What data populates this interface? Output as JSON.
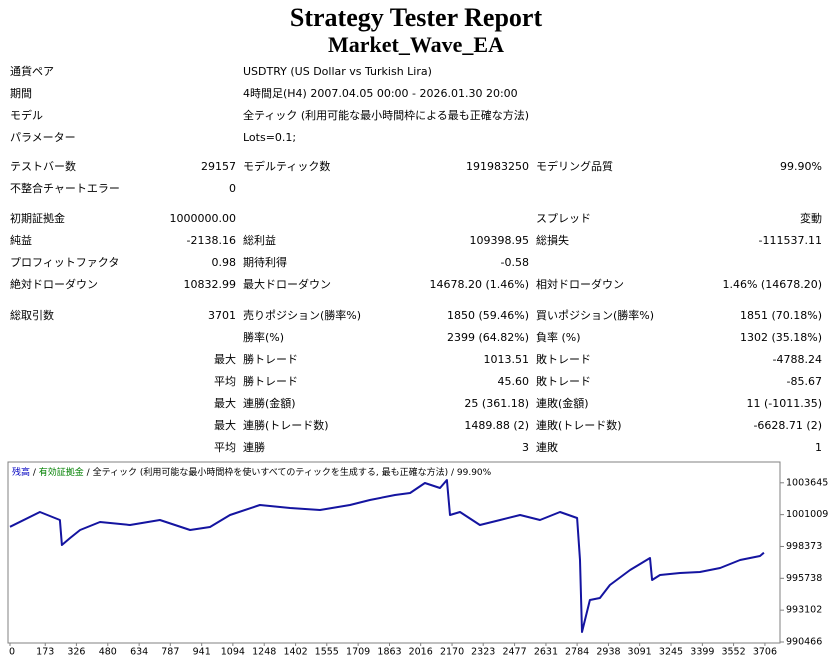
{
  "header": {
    "title": "Strategy Tester Report",
    "subtitle": "Market_Wave_EA"
  },
  "info": [
    [
      "通貨ペア",
      "USDTRY (US Dollar vs Turkish Lira)"
    ],
    [
      "期間",
      "4時間足(H4) 2007.04.05 00:00 - 2026.01.30 20:00"
    ],
    [
      "モデル",
      "全ティック (利用可能な最小時間枠による最も正確な方法)"
    ],
    [
      "パラメーター",
      "Lots=0.1;"
    ]
  ],
  "stats": [
    [
      "テストバー数",
      "29157",
      "モデルティック数",
      "191983250",
      "モデリング品質",
      "99.90%"
    ],
    [
      "不整合チャートエラー",
      "0",
      null,
      null,
      null,
      null
    ],
    [
      "初期証拠金",
      "1000000.00",
      null,
      null,
      "スプレッド",
      "変動"
    ],
    [
      "純益",
      "-2138.16",
      "総利益",
      "109398.95",
      "総損失",
      "-111537.11"
    ],
    [
      "プロフィットファクタ",
      "0.98",
      "期待利得",
      "-0.58",
      null,
      null
    ],
    [
      "絶対ドローダウン",
      "10832.99",
      "最大ドローダウン",
      "14678.20 (1.46%)",
      "相対ドローダウン",
      "1.46% (14678.20)"
    ],
    [
      "総取引数",
      "3701",
      "売りポジション(勝率%)",
      "1850 (59.46%)",
      "買いポジション(勝率%)",
      "1851 (70.18%)"
    ],
    [
      null,
      null,
      "勝率(%)",
      "2399 (64.82%)",
      "負率 (%)",
      "1302 (35.18%)"
    ],
    [
      null,
      "最大",
      "勝トレード",
      "1013.51",
      "敗トレード",
      "-4788.24"
    ],
    [
      null,
      "平均",
      "勝トレード",
      "45.60",
      "敗トレード",
      "-85.67"
    ],
    [
      null,
      "最大",
      "連勝(金額)",
      "25 (361.18)",
      "連敗(金額)",
      "11 (-1011.35)"
    ],
    [
      null,
      "最大",
      "連勝(トレード数)",
      "1489.88 (2)",
      "連敗(トレード数)",
      "-6628.71 (2)"
    ],
    [
      null,
      "平均",
      "連勝",
      "3",
      "連敗",
      "1"
    ]
  ],
  "chart_data": {
    "type": "line",
    "legend": [
      {
        "text": "残高",
        "color": "#0000c0"
      },
      {
        "text": "有効証拠金",
        "color": "#008000"
      },
      {
        "text": "全ティック (利用可能な最小時間枠を使いすべてのティックを生成する, 最も正確な方法)",
        "color": "#000000"
      },
      {
        "text": "99.90%",
        "color": "#000000"
      }
    ],
    "legend_separator": " / ",
    "xlim": [
      0,
      3780
    ],
    "ylim": [
      990466,
      1005366
    ],
    "xticks": [
      0,
      173,
      326,
      480,
      634,
      787,
      941,
      1094,
      1248,
      1402,
      1555,
      1709,
      1863,
      2016,
      2170,
      2323,
      2477,
      2631,
      2784,
      2938,
      3091,
      3245,
      3399,
      3552,
      3706
    ],
    "yticks": [
      990466,
      993102,
      995738,
      998373,
      1001009,
      1003645
    ],
    "x": [
      0,
      147,
      245,
      255,
      295,
      344,
      442,
      589,
      736,
      884,
      982,
      1080,
      1227,
      1375,
      1522,
      1669,
      1767,
      1890,
      1964,
      2037,
      2111,
      2145,
      2160,
      2209,
      2307,
      2406,
      2504,
      2602,
      2700,
      2784,
      2798,
      2808,
      2847,
      2896,
      2945,
      3044,
      3142,
      3152,
      3191,
      3289,
      3387,
      3486,
      3584,
      3682,
      3701
    ],
    "series": [
      {
        "name": "残高",
        "color": "#1414a0",
        "values": [
          1000000,
          1001227,
          1000565,
          998496,
          999075,
          999737,
          1000400,
          1000151,
          1000565,
          999737,
          999986,
          1000979,
          1001807,
          1001559,
          1001393,
          1001807,
          1002221,
          1002635,
          1002800,
          1003628,
          1003214,
          1003876,
          1000979,
          1001227,
          1000151,
          1000565,
          1000979,
          1000565,
          1001227,
          1000731,
          997254,
          991294,
          993943,
          994108,
          995184,
          996426,
          997420,
          995598,
          996012,
          996178,
          996261,
          996592,
          997254,
          997585,
          997862
        ]
      }
    ]
  }
}
